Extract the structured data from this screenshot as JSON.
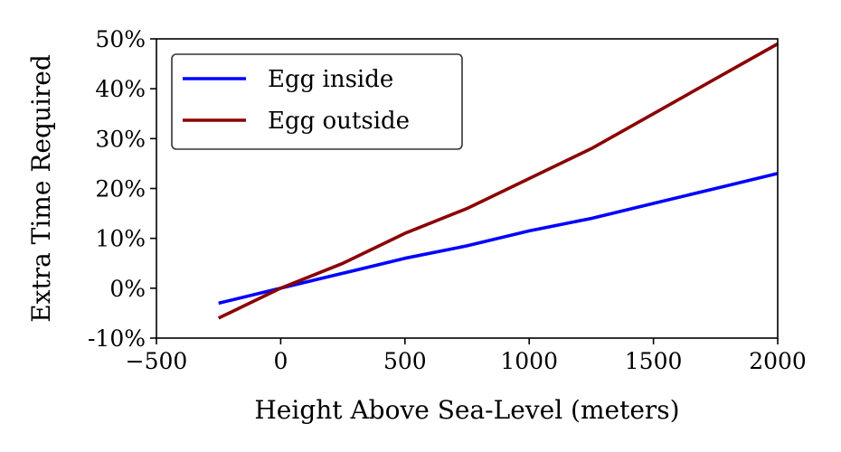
{
  "chart_data": {
    "type": "line",
    "xlabel": "Height Above Sea-Level (meters)",
    "ylabel": "Extra Time Required",
    "xlim": [
      -500,
      2000
    ],
    "ylim": [
      -10,
      50
    ],
    "x_ticks": [
      -500,
      0,
      500,
      1000,
      1500,
      2000
    ],
    "x_tick_labels": [
      "−500",
      "0",
      "500",
      "1000",
      "1500",
      "2000"
    ],
    "y_ticks": [
      -10,
      0,
      10,
      20,
      30,
      40,
      50
    ],
    "y_tick_labels": [
      "-10%",
      "0%",
      "10%",
      "20%",
      "30%",
      "40%",
      "50%"
    ],
    "grid": false,
    "legend_position": "top-left",
    "series": [
      {
        "name": "Egg inside",
        "color": "#0000ff",
        "x": [
          -250,
          0,
          250,
          500,
          750,
          1000,
          1250,
          1500,
          1750,
          2000
        ],
        "y": [
          -3,
          0,
          3,
          6,
          8.5,
          11.5,
          14,
          17,
          20,
          23
        ]
      },
      {
        "name": "Egg outside",
        "color": "#8b0000",
        "x": [
          -250,
          0,
          250,
          500,
          750,
          1000,
          1250,
          1500,
          1750,
          2000
        ],
        "y": [
          -6,
          0,
          5,
          11,
          16,
          22,
          28,
          35,
          42,
          49
        ]
      }
    ]
  }
}
